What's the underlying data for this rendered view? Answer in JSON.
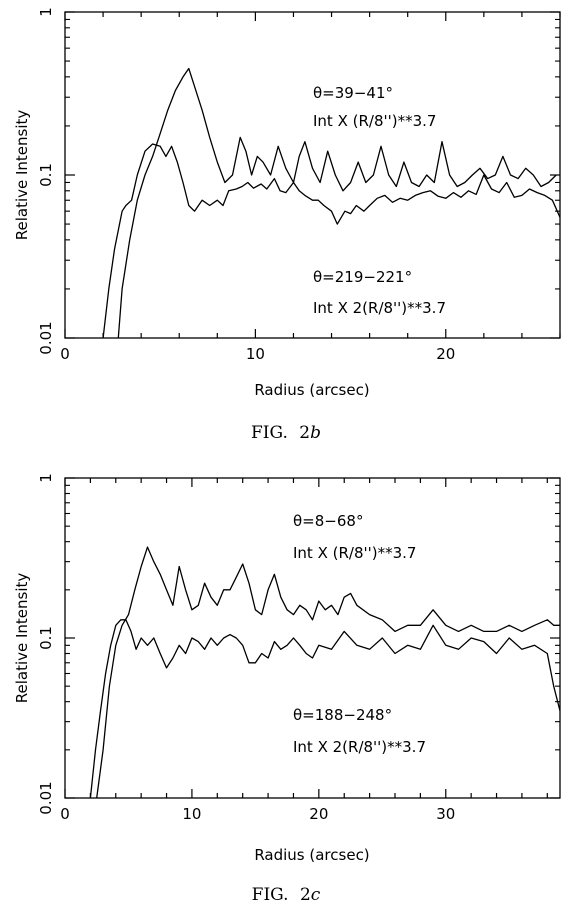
{
  "chart_data": [
    {
      "type": "line",
      "caption": "FIG. 2b",
      "caption_prefix": "FIG.",
      "caption_num": "2",
      "caption_letter": "b",
      "xlabel": "Radius (arcsec)",
      "ylabel": "Relative Intensity",
      "xlim": [
        0,
        26
      ],
      "ylim": [
        0.01,
        1
      ],
      "yscale": "log",
      "xticks": [
        0,
        10,
        20
      ],
      "yticks": [
        0.01,
        0.1,
        1
      ],
      "ytick_labels": [
        "0.01",
        "0.1",
        "1"
      ],
      "annotations": [
        {
          "line1": "θ=39−41°",
          "line2": "Int X (R/8'')**3.7"
        },
        {
          "line1": "θ=219−221°",
          "line2": "Int X 2(R/8'')**3.7"
        }
      ],
      "series": [
        {
          "x": [
            2.0,
            2.3,
            2.6,
            3.0,
            3.2,
            3.5,
            3.8,
            4.2,
            4.6,
            5.0,
            5.3,
            5.6,
            5.9,
            6.2,
            6.5,
            6.8,
            7.2,
            7.6,
            8.0,
            8.3,
            8.6,
            9.0,
            9.3,
            9.6,
            9.9,
            10.3,
            10.6,
            11.0,
            11.3,
            11.6,
            12.0,
            12.3,
            12.6,
            13.0,
            13.3,
            13.6,
            14.0,
            14.3,
            14.7,
            15.0,
            15.3,
            15.7,
            16.0,
            16.4,
            16.8,
            17.2,
            17.6,
            18.0,
            18.4,
            18.8,
            19.2,
            19.6,
            20.0,
            20.4,
            20.8,
            21.2,
            21.6,
            22.0,
            22.4,
            22.8,
            23.2,
            23.6,
            24.0,
            24.4,
            24.8,
            25.2,
            25.6,
            26.0
          ],
          "y": [
            0.01,
            0.02,
            0.035,
            0.06,
            0.065,
            0.07,
            0.1,
            0.14,
            0.155,
            0.15,
            0.13,
            0.15,
            0.12,
            0.09,
            0.065,
            0.06,
            0.07,
            0.065,
            0.07,
            0.065,
            0.08,
            0.082,
            0.085,
            0.09,
            0.083,
            0.088,
            0.082,
            0.095,
            0.08,
            0.078,
            0.09,
            0.08,
            0.075,
            0.07,
            0.07,
            0.065,
            0.06,
            0.05,
            0.06,
            0.058,
            0.065,
            0.06,
            0.065,
            0.072,
            0.075,
            0.068,
            0.072,
            0.07,
            0.075,
            0.078,
            0.08,
            0.074,
            0.072,
            0.078,
            0.073,
            0.08,
            0.076,
            0.1,
            0.082,
            0.078,
            0.09,
            0.073,
            0.075,
            0.082,
            0.078,
            0.075,
            0.07,
            0.055
          ]
        },
        {
          "x": [
            2.8,
            3.0,
            3.4,
            3.8,
            4.2,
            4.6,
            5.0,
            5.4,
            5.8,
            6.2,
            6.5,
            6.8,
            7.2,
            7.6,
            8.0,
            8.4,
            8.8,
            9.2,
            9.5,
            9.8,
            10.1,
            10.4,
            10.8,
            11.2,
            11.6,
            12.0,
            12.3,
            12.6,
            13.0,
            13.4,
            13.8,
            14.2,
            14.6,
            15.0,
            15.4,
            15.8,
            16.2,
            16.6,
            17.0,
            17.4,
            17.8,
            18.2,
            18.6,
            19.0,
            19.4,
            19.8,
            20.2,
            20.6,
            21.0,
            21.4,
            21.8,
            22.2,
            22.6,
            23.0,
            23.4,
            23.8,
            24.2,
            24.6,
            25.0,
            25.4,
            25.8
          ],
          "y": [
            0.01,
            0.02,
            0.04,
            0.07,
            0.1,
            0.13,
            0.18,
            0.25,
            0.33,
            0.4,
            0.45,
            0.35,
            0.25,
            0.17,
            0.12,
            0.09,
            0.1,
            0.17,
            0.14,
            0.1,
            0.13,
            0.12,
            0.1,
            0.15,
            0.11,
            0.09,
            0.13,
            0.16,
            0.11,
            0.09,
            0.14,
            0.1,
            0.08,
            0.09,
            0.12,
            0.09,
            0.1,
            0.15,
            0.1,
            0.085,
            0.12,
            0.09,
            0.085,
            0.1,
            0.09,
            0.16,
            0.1,
            0.085,
            0.09,
            0.1,
            0.11,
            0.095,
            0.1,
            0.13,
            0.1,
            0.095,
            0.11,
            0.1,
            0.085,
            0.09,
            0.1
          ]
        }
      ]
    },
    {
      "type": "line",
      "caption": "FIG. 2c",
      "caption_prefix": "FIG.",
      "caption_num": "2",
      "caption_letter": "c",
      "xlabel": "Radius (arcsec)",
      "ylabel": "Relative Intensity",
      "xlim": [
        0,
        39
      ],
      "ylim": [
        0.01,
        1
      ],
      "yscale": "log",
      "xticks": [
        0,
        10,
        20,
        30
      ],
      "yticks": [
        0.01,
        0.1,
        1
      ],
      "ytick_labels": [
        "0.01",
        "0.1",
        "1"
      ],
      "annotations": [
        {
          "line1": "θ=8−68°",
          "line2": "Int X (R/8'')**3.7"
        },
        {
          "line1": "θ=188−248°",
          "line2": "Int X 2(R/8'')**3.7"
        }
      ],
      "series": [
        {
          "x": [
            2.0,
            2.4,
            2.8,
            3.2,
            3.6,
            4.0,
            4.4,
            4.8,
            5.2,
            5.6,
            6.0,
            6.5,
            7.0,
            7.5,
            8.0,
            8.5,
            9.0,
            9.5,
            10.0,
            10.5,
            11.0,
            11.5,
            12.0,
            12.5,
            13.0,
            13.5,
            14.0,
            14.5,
            15.0,
            15.5,
            16.0,
            16.5,
            17.0,
            17.5,
            18.0,
            18.5,
            19.0,
            19.5,
            20.0,
            21.0,
            22.0,
            23.0,
            24.0,
            25.0,
            26.0,
            27.0,
            28.0,
            29.0,
            30.0,
            31.0,
            32.0,
            33.0,
            34.0,
            35.0,
            36.0,
            37.0,
            38.0,
            38.5,
            39.0
          ],
          "y": [
            0.01,
            0.02,
            0.035,
            0.06,
            0.09,
            0.12,
            0.13,
            0.13,
            0.11,
            0.085,
            0.1,
            0.09,
            0.1,
            0.08,
            0.065,
            0.075,
            0.09,
            0.08,
            0.1,
            0.095,
            0.085,
            0.1,
            0.09,
            0.1,
            0.105,
            0.1,
            0.09,
            0.07,
            0.07,
            0.08,
            0.075,
            0.095,
            0.085,
            0.09,
            0.1,
            0.09,
            0.08,
            0.075,
            0.09,
            0.085,
            0.11,
            0.09,
            0.085,
            0.1,
            0.08,
            0.09,
            0.085,
            0.12,
            0.09,
            0.085,
            0.1,
            0.095,
            0.08,
            0.1,
            0.085,
            0.09,
            0.08,
            0.05,
            0.035
          ]
        },
        {
          "x": [
            2.5,
            3.0,
            3.5,
            4.0,
            4.5,
            5.0,
            5.5,
            6.0,
            6.5,
            7.0,
            7.5,
            8.0,
            8.5,
            9.0,
            9.5,
            10.0,
            10.5,
            11.0,
            11.5,
            12.0,
            12.5,
            13.0,
            13.5,
            14.0,
            14.5,
            15.0,
            15.5,
            16.0,
            16.5,
            17.0,
            17.5,
            18.0,
            18.5,
            19.0,
            19.5,
            20.0,
            20.5,
            21.0,
            21.5,
            22.0,
            22.5,
            23.0,
            24.0,
            25.0,
            26.0,
            27.0,
            28.0,
            29.0,
            30.0,
            31.0,
            32.0,
            33.0,
            34.0,
            35.0,
            36.0,
            37.0,
            38.0,
            38.5,
            39.0
          ],
          "y": [
            0.01,
            0.02,
            0.05,
            0.09,
            0.12,
            0.14,
            0.2,
            0.28,
            0.37,
            0.3,
            0.25,
            0.2,
            0.16,
            0.28,
            0.2,
            0.15,
            0.16,
            0.22,
            0.18,
            0.16,
            0.2,
            0.2,
            0.24,
            0.29,
            0.22,
            0.15,
            0.14,
            0.2,
            0.25,
            0.18,
            0.15,
            0.14,
            0.16,
            0.15,
            0.13,
            0.17,
            0.15,
            0.16,
            0.14,
            0.18,
            0.19,
            0.16,
            0.14,
            0.13,
            0.11,
            0.12,
            0.12,
            0.15,
            0.12,
            0.11,
            0.12,
            0.11,
            0.11,
            0.12,
            0.11,
            0.12,
            0.13,
            0.12,
            0.12
          ]
        }
      ]
    }
  ]
}
